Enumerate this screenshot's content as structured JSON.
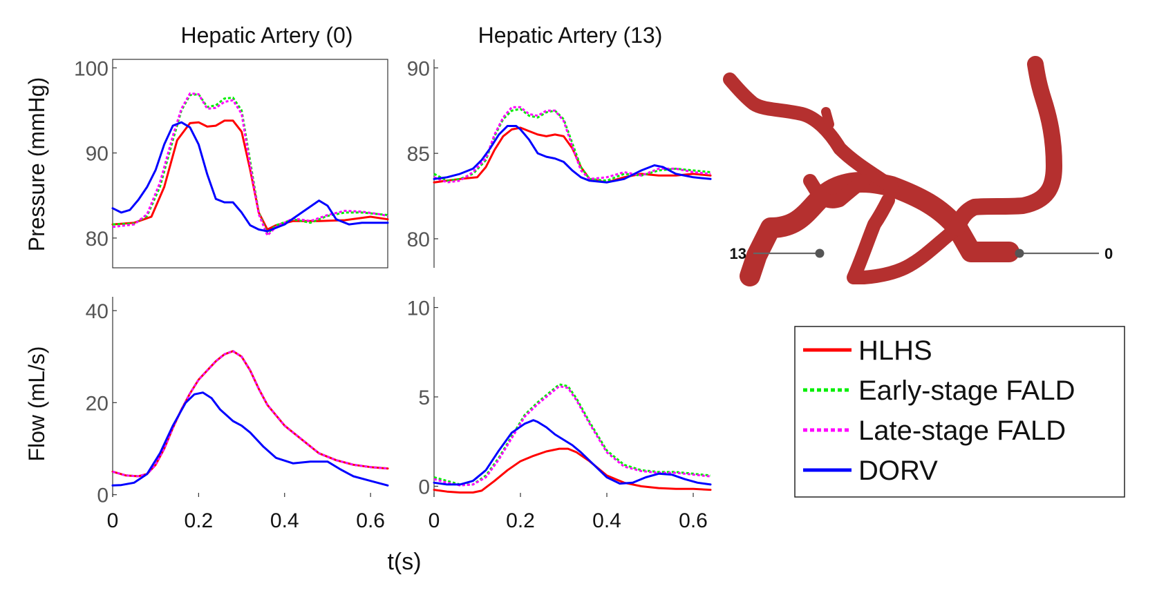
{
  "figure": {
    "xlabel": "t(s)"
  },
  "legend": [
    {
      "name": "HLHS",
      "color": "#ff0000",
      "dash": "solid"
    },
    {
      "name": "Early-stage FALD",
      "color": "#00ee00",
      "dash": "dotted"
    },
    {
      "name": "Late-stage FALD",
      "color": "#ff00ff",
      "dash": "dotted"
    },
    {
      "name": "DORV",
      "color": "#0000ff",
      "dash": "solid"
    }
  ],
  "anatomy": {
    "vessel_color": "#b5302f",
    "markers": [
      {
        "label": "13"
      },
      {
        "label": "0"
      }
    ]
  },
  "chart_data": [
    {
      "type": "line",
      "id": "p0",
      "title": "Hepatic Artery (0)",
      "ylabel": "Pressure (mmHg)",
      "xlabel": "",
      "xlim": [
        0,
        0.64
      ],
      "ylim": [
        76.5,
        101
      ],
      "yticks": [
        80,
        90,
        100
      ],
      "xticks": [],
      "series": [
        {
          "name": "HLHS",
          "x": [
            0,
            0.05,
            0.09,
            0.12,
            0.15,
            0.18,
            0.2,
            0.22,
            0.24,
            0.26,
            0.28,
            0.3,
            0.32,
            0.34,
            0.36,
            0.38,
            0.42,
            0.48,
            0.54,
            0.6,
            0.64
          ],
          "y": [
            81.6,
            81.8,
            82.5,
            86,
            91.5,
            93.5,
            93.6,
            93.1,
            93.2,
            93.8,
            93.8,
            92.5,
            88,
            83,
            81,
            81.5,
            82,
            82,
            82.1,
            82.5,
            82.2
          ]
        },
        {
          "name": "Early-stage FALD",
          "x": [
            0,
            0.05,
            0.08,
            0.11,
            0.14,
            0.16,
            0.18,
            0.2,
            0.22,
            0.24,
            0.26,
            0.28,
            0.3,
            0.32,
            0.34,
            0.36,
            0.38,
            0.42,
            0.46,
            0.5,
            0.54,
            0.58,
            0.62,
            0.64
          ],
          "y": [
            81.6,
            81.7,
            82.6,
            86,
            91.5,
            95,
            96.8,
            96.9,
            95.4,
            95.6,
            96.4,
            96.5,
            95,
            89,
            83,
            80.5,
            81.5,
            82.2,
            81.8,
            82.6,
            83,
            83,
            82.8,
            82.7
          ]
        },
        {
          "name": "Late-stage FALD",
          "x": [
            0,
            0.05,
            0.08,
            0.11,
            0.14,
            0.16,
            0.18,
            0.2,
            0.22,
            0.24,
            0.26,
            0.28,
            0.3,
            0.32,
            0.34,
            0.36,
            0.38,
            0.42,
            0.46,
            0.5,
            0.54,
            0.58,
            0.62,
            0.64
          ],
          "y": [
            81.3,
            81.6,
            82.8,
            86.5,
            92,
            95.2,
            97,
            96.9,
            95.2,
            95.3,
            96,
            96.2,
            94.6,
            88.5,
            82.8,
            80.3,
            81.3,
            82.3,
            82,
            82.7,
            83.2,
            83.1,
            82.8,
            82.6
          ]
        },
        {
          "name": "DORV",
          "x": [
            0,
            0.02,
            0.04,
            0.06,
            0.08,
            0.1,
            0.12,
            0.14,
            0.16,
            0.18,
            0.2,
            0.22,
            0.24,
            0.26,
            0.28,
            0.3,
            0.32,
            0.34,
            0.36,
            0.4,
            0.44,
            0.48,
            0.5,
            0.52,
            0.55,
            0.58,
            0.64
          ],
          "y": [
            83.5,
            83,
            83.3,
            84.5,
            86,
            88,
            91,
            93.2,
            93.6,
            93,
            91,
            87.5,
            84.6,
            84.2,
            84.2,
            83,
            81.5,
            81,
            80.8,
            81.6,
            83,
            84.4,
            83.8,
            82.2,
            81.6,
            81.8,
            81.8
          ]
        }
      ]
    },
    {
      "type": "line",
      "id": "p13",
      "title": "Hepatic Artery (13)",
      "ylabel": "",
      "xlabel": "",
      "xlim": [
        0,
        0.64
      ],
      "ylim": [
        78.3,
        90.5
      ],
      "yticks": [
        80,
        85,
        90
      ],
      "xticks": [],
      "series": [
        {
          "name": "HLHS",
          "x": [
            0,
            0.03,
            0.06,
            0.1,
            0.12,
            0.14,
            0.16,
            0.18,
            0.2,
            0.22,
            0.24,
            0.26,
            0.28,
            0.3,
            0.32,
            0.34,
            0.36,
            0.4,
            0.44,
            0.48,
            0.52,
            0.56,
            0.6,
            0.64
          ],
          "y": [
            83.3,
            83.4,
            83.5,
            83.6,
            84.2,
            85.2,
            86,
            86.4,
            86.5,
            86.3,
            86.1,
            86,
            86.1,
            86,
            85.3,
            84.2,
            83.5,
            83.3,
            83.6,
            83.8,
            83.7,
            83.7,
            83.8,
            83.7
          ]
        },
        {
          "name": "Early-stage FALD",
          "x": [
            0,
            0.03,
            0.06,
            0.09,
            0.12,
            0.14,
            0.16,
            0.18,
            0.2,
            0.22,
            0.24,
            0.26,
            0.28,
            0.3,
            0.32,
            0.34,
            0.36,
            0.4,
            0.44,
            0.48,
            0.52,
            0.56,
            0.6,
            0.64
          ],
          "y": [
            83.8,
            83.4,
            83.5,
            83.8,
            84.6,
            86,
            87,
            87.5,
            87.6,
            87.2,
            87.1,
            87.4,
            87.5,
            87,
            85.6,
            84.2,
            83.5,
            83.4,
            83.8,
            83.7,
            84,
            84.1,
            84,
            83.9
          ]
        },
        {
          "name": "Late-stage FALD",
          "x": [
            0,
            0.03,
            0.06,
            0.09,
            0.12,
            0.14,
            0.16,
            0.18,
            0.2,
            0.22,
            0.24,
            0.26,
            0.28,
            0.3,
            0.32,
            0.34,
            0.36,
            0.4,
            0.44,
            0.48,
            0.52,
            0.56,
            0.6,
            0.64
          ],
          "y": [
            83.6,
            83.3,
            83.4,
            83.9,
            84.7,
            86.1,
            87.1,
            87.7,
            87.7,
            87.3,
            87.2,
            87.5,
            87.5,
            86.9,
            85.4,
            84,
            83.5,
            83.6,
            83.9,
            83.7,
            84.1,
            84.1,
            83.9,
            83.8
          ]
        },
        {
          "name": "DORV",
          "x": [
            0,
            0.03,
            0.06,
            0.09,
            0.11,
            0.13,
            0.15,
            0.17,
            0.19,
            0.2,
            0.22,
            0.24,
            0.26,
            0.28,
            0.3,
            0.32,
            0.34,
            0.36,
            0.4,
            0.44,
            0.48,
            0.51,
            0.53,
            0.56,
            0.6,
            0.64
          ],
          "y": [
            83.5,
            83.6,
            83.8,
            84.1,
            84.6,
            85.3,
            86.1,
            86.6,
            86.6,
            86.4,
            85.8,
            85,
            84.8,
            84.7,
            84.5,
            84,
            83.6,
            83.4,
            83.3,
            83.5,
            84,
            84.3,
            84.2,
            83.8,
            83.6,
            83.5
          ]
        }
      ]
    },
    {
      "type": "line",
      "id": "f0",
      "title": "",
      "ylabel": "Flow (mL/s)",
      "xlabel": "t(s)",
      "xlim": [
        0,
        0.64
      ],
      "ylim": [
        -0.5,
        43
      ],
      "yticks": [
        0,
        20,
        40
      ],
      "xticks": [
        0,
        0.2,
        0.4,
        0.6
      ],
      "series": [
        {
          "name": "HLHS",
          "x": [
            0,
            0.03,
            0.06,
            0.08,
            0.1,
            0.12,
            0.14,
            0.16,
            0.18,
            0.2,
            0.22,
            0.24,
            0.26,
            0.28,
            0.3,
            0.32,
            0.34,
            0.36,
            0.4,
            0.44,
            0.48,
            0.52,
            0.56,
            0.6,
            0.64
          ],
          "y": [
            5,
            4.2,
            4,
            4.5,
            6.5,
            10,
            14.5,
            18.5,
            22,
            25,
            27,
            29,
            30.5,
            31.2,
            30,
            27,
            23,
            19.5,
            15,
            12,
            9,
            7.5,
            6.5,
            6,
            5.7
          ]
        },
        {
          "name": "Early-stage FALD",
          "x": [
            0,
            0.03,
            0.06,
            0.08,
            0.1,
            0.12,
            0.14,
            0.16,
            0.18,
            0.2,
            0.22,
            0.24,
            0.26,
            0.28,
            0.3,
            0.32,
            0.34,
            0.36,
            0.4,
            0.44,
            0.48,
            0.52,
            0.56,
            0.6,
            0.64
          ],
          "y": [
            5,
            4.2,
            4,
            4.5,
            6.5,
            10,
            14.5,
            18.5,
            22,
            25,
            27,
            29,
            30.5,
            31.2,
            30,
            27,
            23,
            19.5,
            15,
            12,
            9,
            7.5,
            6.5,
            6,
            5.7
          ]
        },
        {
          "name": "Late-stage FALD",
          "x": [
            0,
            0.03,
            0.06,
            0.08,
            0.1,
            0.12,
            0.14,
            0.16,
            0.18,
            0.2,
            0.22,
            0.24,
            0.26,
            0.28,
            0.3,
            0.32,
            0.34,
            0.36,
            0.4,
            0.44,
            0.48,
            0.52,
            0.56,
            0.6,
            0.64
          ],
          "y": [
            5,
            4.2,
            4,
            4.5,
            6.5,
            10,
            14.5,
            18.5,
            22,
            25,
            27,
            29,
            30.5,
            31.2,
            30,
            27,
            23,
            19.5,
            15,
            12,
            9,
            7.5,
            6.5,
            6,
            5.7
          ]
        },
        {
          "name": "DORV",
          "x": [
            0,
            0.02,
            0.05,
            0.08,
            0.11,
            0.14,
            0.17,
            0.19,
            0.21,
            0.23,
            0.25,
            0.28,
            0.3,
            0.32,
            0.35,
            0.38,
            0.42,
            0.46,
            0.5,
            0.53,
            0.56,
            0.6,
            0.64
          ],
          "y": [
            2,
            2.1,
            2.6,
            4.5,
            9,
            15,
            20,
            21.8,
            22.2,
            21,
            18.5,
            16,
            15,
            13.5,
            10.5,
            8,
            6.8,
            7.2,
            7.2,
            5.5,
            4,
            3,
            2
          ]
        }
      ]
    },
    {
      "type": "line",
      "id": "f13",
      "title": "",
      "ylabel": "",
      "xlabel": "t(s)",
      "xlim": [
        0,
        0.64
      ],
      "ylim": [
        -0.6,
        10.6
      ],
      "yticks": [
        0,
        5,
        10
      ],
      "xticks": [
        0,
        0.2,
        0.4,
        0.6
      ],
      "series": [
        {
          "name": "HLHS",
          "x": [
            0,
            0.03,
            0.06,
            0.09,
            0.11,
            0.14,
            0.17,
            0.2,
            0.23,
            0.26,
            0.29,
            0.31,
            0.33,
            0.36,
            0.4,
            0.44,
            0.48,
            0.52,
            0.56,
            0.6,
            0.64
          ],
          "y": [
            -0.2,
            -0.3,
            -0.35,
            -0.35,
            -0.25,
            0.3,
            0.9,
            1.4,
            1.7,
            1.95,
            2.1,
            2.1,
            1.9,
            1.4,
            0.6,
            0.2,
            0,
            -0.1,
            -0.15,
            -0.15,
            -0.2
          ]
        },
        {
          "name": "Early-stage FALD",
          "x": [
            0,
            0.03,
            0.06,
            0.09,
            0.12,
            0.15,
            0.18,
            0.21,
            0.24,
            0.27,
            0.29,
            0.31,
            0.33,
            0.36,
            0.4,
            0.44,
            0.48,
            0.52,
            0.56,
            0.6,
            0.64
          ],
          "y": [
            0.5,
            0.3,
            0.1,
            0.1,
            0.6,
            1.6,
            2.8,
            4,
            4.7,
            5.3,
            5.7,
            5.6,
            4.9,
            3.6,
            2,
            1.2,
            0.9,
            0.8,
            0.8,
            0.7,
            0.6
          ]
        },
        {
          "name": "Late-stage FALD",
          "x": [
            0,
            0.03,
            0.06,
            0.09,
            0.12,
            0.15,
            0.18,
            0.21,
            0.24,
            0.27,
            0.29,
            0.31,
            0.33,
            0.36,
            0.4,
            0.44,
            0.48,
            0.52,
            0.56,
            0.6,
            0.64
          ],
          "y": [
            0.4,
            0.2,
            0.05,
            0.1,
            0.5,
            1.5,
            2.7,
            3.9,
            4.6,
            5.2,
            5.6,
            5.5,
            4.8,
            3.5,
            1.9,
            1.1,
            0.85,
            0.75,
            0.75,
            0.65,
            0.55
          ]
        },
        {
          "name": "DORV",
          "x": [
            0,
            0.03,
            0.06,
            0.09,
            0.12,
            0.15,
            0.18,
            0.21,
            0.23,
            0.24,
            0.26,
            0.28,
            0.3,
            0.32,
            0.34,
            0.37,
            0.4,
            0.43,
            0.46,
            0.49,
            0.52,
            0.55,
            0.58,
            0.61,
            0.64
          ],
          "y": [
            0.2,
            0.1,
            0.1,
            0.3,
            0.9,
            2,
            3,
            3.5,
            3.7,
            3.6,
            3.3,
            2.9,
            2.6,
            2.3,
            1.9,
            1.2,
            0.5,
            0.15,
            0.2,
            0.5,
            0.7,
            0.65,
            0.4,
            0.2,
            0.1
          ]
        }
      ]
    }
  ]
}
